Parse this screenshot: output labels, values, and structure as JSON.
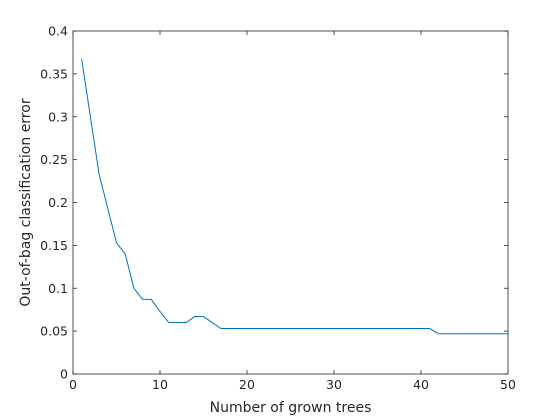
{
  "chart_data": {
    "type": "line",
    "title": "",
    "xlabel": "Number of grown trees",
    "ylabel": "Out-of-bag classification error",
    "xlim": [
      0,
      50
    ],
    "ylim": [
      0,
      0.4
    ],
    "xticks": [
      0,
      10,
      20,
      30,
      40,
      50
    ],
    "xtick_labels": [
      "0",
      "10",
      "20",
      "30",
      "40",
      "50"
    ],
    "yticks": [
      0,
      0.05,
      0.1,
      0.15,
      0.2,
      0.25,
      0.3,
      0.35,
      0.4
    ],
    "ytick_labels": [
      "0",
      "0.05",
      "0.1",
      "0.15",
      "0.2",
      "0.25",
      "0.3",
      "0.35",
      "0.4"
    ],
    "grid": false,
    "legend": "none",
    "series": [
      {
        "color": "#0072BD",
        "x": [
          1,
          2,
          3,
          4,
          5,
          6,
          7,
          8,
          9,
          10,
          11,
          12,
          13,
          14,
          15,
          16,
          17,
          18,
          19,
          20,
          21,
          22,
          23,
          24,
          25,
          26,
          27,
          28,
          29,
          30,
          31,
          32,
          33,
          34,
          35,
          36,
          37,
          38,
          39,
          40,
          41,
          42,
          43,
          44,
          45,
          46,
          47,
          48,
          49,
          50
        ],
        "y": [
          0.367,
          0.3,
          0.233,
          0.193,
          0.153,
          0.14,
          0.1,
          0.087,
          0.087,
          0.073,
          0.06,
          0.06,
          0.06,
          0.067,
          0.067,
          0.06,
          0.053,
          0.053,
          0.053,
          0.053,
          0.053,
          0.053,
          0.053,
          0.053,
          0.053,
          0.053,
          0.053,
          0.053,
          0.053,
          0.053,
          0.053,
          0.053,
          0.053,
          0.053,
          0.053,
          0.053,
          0.053,
          0.053,
          0.053,
          0.053,
          0.053,
          0.047,
          0.047,
          0.047,
          0.047,
          0.047,
          0.047,
          0.047,
          0.047,
          0.047
        ]
      }
    ]
  }
}
